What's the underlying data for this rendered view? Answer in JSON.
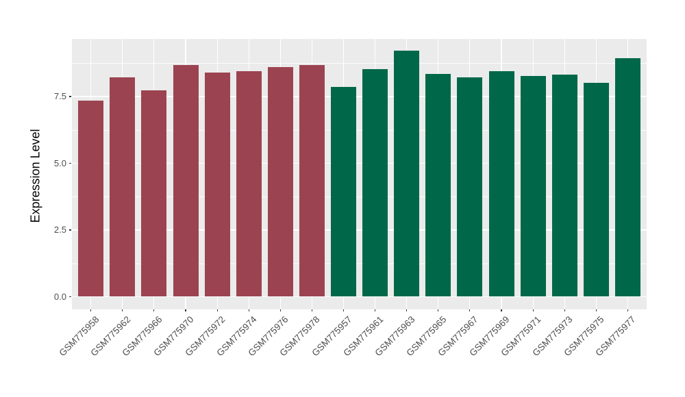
{
  "figure": {
    "background": "#ffffff",
    "panel_background": "#EBEBEB",
    "gridline_color": "#ffffff",
    "tick_color": "#333333",
    "axis_text_color": "#4D4D4D"
  },
  "chart_data": {
    "type": "bar",
    "title": "",
    "xlabel": "",
    "ylabel": "Expression Level",
    "categories": [
      "GSM775958",
      "GSM775962",
      "GSM775966",
      "GSM775970",
      "GSM775972",
      "GSM775974",
      "GSM775976",
      "GSM775978",
      "GSM775957",
      "GSM775961",
      "GSM775963",
      "GSM775965",
      "GSM775967",
      "GSM775969",
      "GSM775971",
      "GSM775973",
      "GSM775975",
      "GSM775977"
    ],
    "values": [
      7.34,
      8.23,
      7.74,
      8.67,
      8.39,
      8.45,
      8.59,
      8.69,
      7.87,
      8.53,
      9.21,
      8.35,
      8.23,
      8.44,
      8.27,
      8.33,
      8.01,
      8.94
    ],
    "bar_colors": [
      "#9C4351",
      "#9C4351",
      "#9C4351",
      "#9C4351",
      "#9C4351",
      "#9C4351",
      "#9C4351",
      "#9C4351",
      "#006849",
      "#006849",
      "#006849",
      "#006849",
      "#006849",
      "#006849",
      "#006849",
      "#006849",
      "#006849",
      "#006849"
    ],
    "group_colors": {
      "maroon_group": "#9C4351",
      "green_group": "#006849"
    },
    "ylim": [
      -0.45,
      9.65
    ],
    "yticks": {
      "values": [
        0.0,
        2.5,
        5.0,
        7.5
      ],
      "labels": [
        "0.0",
        "2.5",
        "5.0",
        "7.5"
      ]
    },
    "minor_yticks": [
      1.25,
      3.75,
      6.25,
      8.75
    ],
    "grid": "major+minor horizontal, major vertical at bar centers",
    "legend_position": "none"
  }
}
